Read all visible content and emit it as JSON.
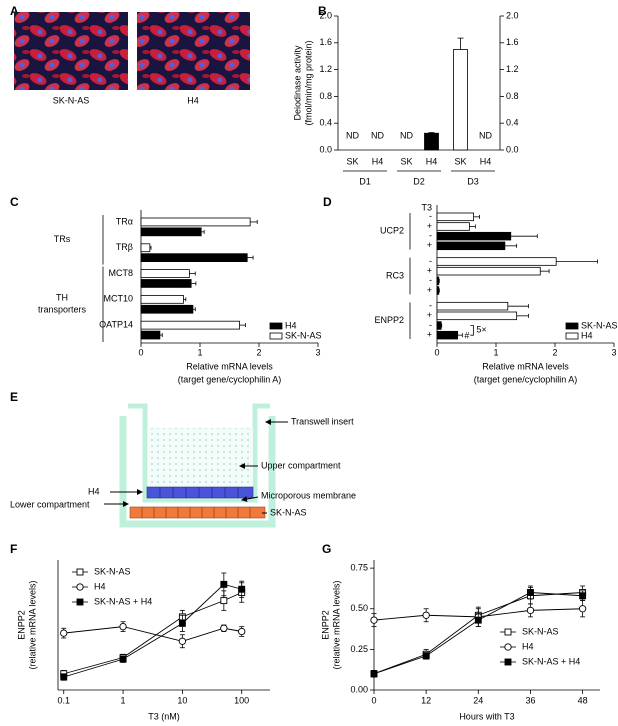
{
  "panel_a": {
    "panel": "A",
    "images": [
      "SK-N-AS",
      "H4"
    ]
  },
  "diagram": {
    "panel": "E",
    "transwell_insert": "Transwell insert",
    "upper_compartment": "Upper compartment",
    "upper_cells": "H4",
    "membrane": "Microporous membrane",
    "lower_compartment": "Lower compartment",
    "lower_cells": "SK-N-AS"
  },
  "chart_data": [
    {
      "type": "bar",
      "panel": "B",
      "ylabel": [
        "Deiodinase activity",
        "(fmol/min/mg protein)"
      ],
      "categories": [
        "SK",
        "H4",
        "SK",
        "H4",
        "SK",
        "H4"
      ],
      "groups": [
        "D1",
        "D2",
        "D3"
      ],
      "values": [
        null,
        null,
        null,
        0.25,
        1.5,
        null
      ],
      "value_labels": [
        "ND",
        "ND",
        "ND",
        null,
        null,
        "ND"
      ],
      "errors": [
        null,
        null,
        null,
        0.01,
        0.17,
        null
      ],
      "colors": [
        "#ffffff",
        "#000000",
        "#ffffff",
        "#000000",
        "#ffffff",
        "#000000"
      ],
      "ylim": [
        0,
        2
      ],
      "yticks": [
        {
          "value": 0,
          "label": "0.0"
        },
        0.4,
        0.8,
        1.2,
        1.6,
        {
          "value": 2,
          "label": "2.0"
        }
      ],
      "y2lim": [
        0,
        2
      ],
      "y2ticks": [
        {
          "value": 0,
          "label": "0.0"
        },
        0.4,
        0.8,
        1.2,
        1.6,
        {
          "value": 2,
          "label": "2.0"
        }
      ]
    },
    {
      "type": "hbar",
      "panel": "C",
      "xlabel": [
        "Relative mRNA levels",
        "(target gene/cyclophilin A)"
      ],
      "categories": [
        "TRα",
        "TRβ",
        "MCT8",
        "MCT10",
        "OATP14"
      ],
      "groups": [
        [
          "TRs"
        ],
        [
          "TH",
          "transporters"
        ]
      ],
      "series": [
        {
          "name": "H4",
          "color": "#000000",
          "values": [
            1.02,
            1.8,
            0.85,
            0.88,
            0.32
          ],
          "errors": [
            0.05,
            0.1,
            0.08,
            0.04,
            0.04
          ]
        },
        {
          "name": "SK-N-AS",
          "color": "#ffffff",
          "values": [
            1.85,
            0.15,
            0.82,
            0.72,
            1.67
          ],
          "errors": [
            0.12,
            0.02,
            0.1,
            0.04,
            0.1
          ]
        }
      ],
      "xlim": [
        0,
        3
      ],
      "xticks": [
        0,
        1,
        2,
        3
      ],
      "legend": "lower right"
    },
    {
      "type": "hbar",
      "panel": "D",
      "xlabel": [
        "Relative mRNA levels",
        "(target gene/cyclophilin A)"
      ],
      "categories": [
        "UCP2",
        "RC3",
        "ENPP2"
      ],
      "treatment_label": "T3",
      "treatments": [
        "-",
        "+"
      ],
      "series": [
        {
          "name": "SK-N-AS",
          "color": "#000000",
          "values": [
            [
              1.25,
              1.15
            ],
            [
              0.03,
              0.03
            ],
            [
              0.07,
              0.35
            ]
          ],
          "errors": [
            [
              0.45,
              0.2
            ],
            [
              0.01,
              0.01
            ],
            [
              0.01,
              0.08
            ]
          ]
        },
        {
          "name": "H4",
          "color": "#ffffff",
          "values": [
            [
              0.62,
              0.55
            ],
            [
              2.02,
              1.75
            ],
            [
              1.2,
              1.35
            ]
          ],
          "errors": [
            [
              0.1,
              0.1
            ],
            [
              0.7,
              0.15
            ],
            [
              0.35,
              0.2
            ]
          ]
        }
      ],
      "annotations": [
        "5×",
        "#"
      ],
      "xlim": [
        0,
        3
      ],
      "xticks": [
        0,
        1,
        2,
        3
      ],
      "legend": "lower right"
    },
    {
      "type": "line",
      "panel": "F",
      "ylabel": [
        "ENPP2",
        "(relative mRNA levels)"
      ],
      "xlabel": "T3 (nM)",
      "xscale": "log",
      "x": [
        0.1,
        1,
        10,
        50,
        100
      ],
      "series": [
        {
          "name": "SK-N-AS",
          "color": "#000000",
          "fill": "#ffffff",
          "marker": "square",
          "values": [
            0.1,
            0.2,
            0.45,
            0.55,
            0.6
          ],
          "errors": [
            0.02,
            0.02,
            0.04,
            0.06,
            0.06
          ]
        },
        {
          "name": "H4",
          "color": "#000000",
          "fill": "#ffffff",
          "marker": "circle",
          "values": [
            0.35,
            0.39,
            0.3,
            0.38,
            0.36
          ],
          "errors": [
            0.03,
            0.03,
            0.04,
            0.02,
            0.03
          ]
        },
        {
          "name": "SK-N-AS + H4",
          "color": "#000000",
          "fill": "#000000",
          "marker": "square",
          "values": [
            0.08,
            0.19,
            0.41,
            0.65,
            0.62
          ],
          "errors": [
            0.02,
            0.02,
            0.05,
            0.07,
            0.05
          ]
        }
      ],
      "xlim": [
        0.08,
        300
      ],
      "xticks": [
        0.1,
        1,
        10,
        100
      ],
      "ylim": [
        0,
        0.8
      ],
      "legend": "upper left"
    },
    {
      "type": "line",
      "panel": "G",
      "ylabel": [
        "ENPP2",
        "(relative mRNA levels)"
      ],
      "xlabel": "Hours with T3",
      "x": [
        0,
        12,
        24,
        36,
        48
      ],
      "series": [
        {
          "name": "SK-N-AS",
          "color": "#000000",
          "fill": "#ffffff",
          "marker": "square",
          "values": [
            0.1,
            0.22,
            0.46,
            0.58,
            0.6
          ],
          "errors": [
            0.02,
            0.03,
            0.04,
            0.05,
            0.04
          ]
        },
        {
          "name": "H4",
          "color": "#000000",
          "fill": "#ffffff",
          "marker": "circle",
          "values": [
            0.43,
            0.46,
            0.45,
            0.49,
            0.5
          ],
          "errors": [
            0.04,
            0.04,
            0.06,
            0.04,
            0.05
          ]
        },
        {
          "name": "SK-N-AS + H4",
          "color": "#000000",
          "fill": "#000000",
          "marker": "square",
          "values": [
            0.1,
            0.21,
            0.43,
            0.6,
            0.58
          ],
          "errors": [
            0.02,
            0.02,
            0.04,
            0.04,
            0.03
          ]
        }
      ],
      "xlim": [
        0,
        52
      ],
      "xticks": [
        0,
        12,
        24,
        36,
        48
      ],
      "ylim": [
        0,
        0.8
      ],
      "yticks": [
        {
          "value": 0,
          "label": "0.00"
        },
        0.25,
        {
          "value": 0.5,
          "label": "0.50"
        },
        0.75
      ],
      "legend": "lower right"
    }
  ]
}
